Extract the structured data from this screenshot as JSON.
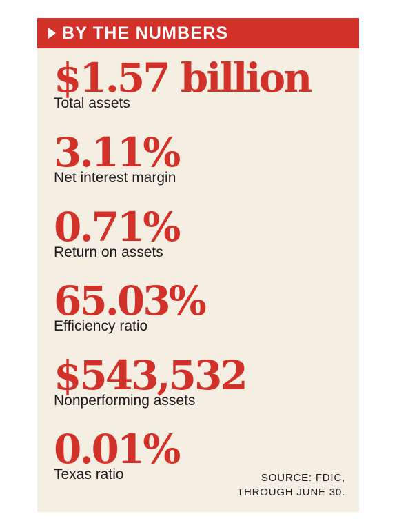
{
  "header": {
    "title": "BY THE NUMBERS",
    "icon": "triangle-right-icon",
    "color": "#d2312a"
  },
  "stats": [
    {
      "value": "$1.57 billion",
      "label": "Total assets"
    },
    {
      "value": "3.11%",
      "label": "Net interest margin"
    },
    {
      "value": "0.71%",
      "label": "Return on assets"
    },
    {
      "value": "65.03%",
      "label": "Efficiency ratio"
    },
    {
      "value": "$543,532",
      "label": "Nonperforming assets"
    },
    {
      "value": "0.01%",
      "label": "Texas ratio"
    }
  ],
  "source": {
    "line1": "SOURCE: FDIC,",
    "line2": "THROUGH JUNE 30."
  },
  "colors": {
    "accent": "#d2312a",
    "background": "#f5eee2",
    "text": "#1e1e1e"
  }
}
